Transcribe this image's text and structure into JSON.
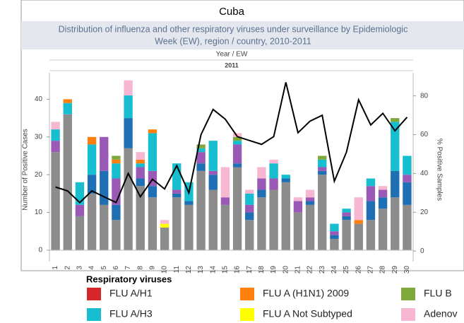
{
  "chart_data": {
    "type": "bar",
    "stacked": true,
    "country": "Cuba",
    "title": "Distribution of influenza and other respiratory viruses under surveillance by Epidemiologic",
    "subtitle": "Week (EW), region / country, 2010-2011",
    "x_header": "Year  /  EW",
    "year": "2011",
    "ylabel": "Number of Positive Cases",
    "y2label": "% Positive Samples",
    "legend_title": "Respiratory viruses",
    "categories": [
      "1",
      "2",
      "3",
      "4",
      "5",
      "6",
      "7",
      "8",
      "9",
      "10",
      "11",
      "12",
      "13",
      "14",
      "15",
      "16",
      "17",
      "18",
      "19",
      "20",
      "21",
      "22",
      "23",
      "24",
      "25",
      "26",
      "27",
      "28",
      "29",
      "30"
    ],
    "ylim": [
      -3,
      47
    ],
    "yticks": [
      0,
      10,
      20,
      30,
      40
    ],
    "y2lim": [
      -5.4,
      91.9
    ],
    "y2ticks": [
      0,
      20,
      40,
      60,
      80
    ],
    "series": [
      {
        "color": "#8c8c8c",
        "values": [
          26,
          36,
          9,
          15,
          12,
          8,
          27,
          17,
          14,
          6,
          14,
          12,
          21,
          16,
          12,
          22,
          8,
          14,
          16,
          18,
          10,
          12,
          20,
          3,
          8,
          7,
          8,
          11,
          14,
          12
        ]
      },
      {
        "color": "#1f6fb4",
        "values": [
          0,
          0,
          0,
          5,
          9,
          4,
          8,
          2,
          3,
          0,
          1,
          1,
          2,
          4,
          0,
          1,
          2,
          2,
          0,
          1,
          0,
          1,
          1,
          1,
          1,
          0,
          5,
          3,
          7,
          6
        ]
      },
      {
        "color": "#9b59b6",
        "values": [
          3,
          0,
          3,
          0,
          9,
          7,
          0,
          3,
          4,
          0,
          1,
          0,
          3,
          1,
          2,
          5,
          2,
          3,
          3,
          0,
          3,
          1,
          1,
          1,
          1,
          0,
          4,
          2,
          0,
          2
        ]
      },
      {
        "name": "FLU A/H1",
        "color": "#d62728",
        "values": [
          0,
          0,
          0,
          0,
          0,
          0,
          0,
          0,
          0,
          0,
          0,
          0,
          0,
          0,
          0,
          0,
          0,
          0,
          0,
          0,
          0,
          0,
          0,
          0,
          0,
          0,
          0,
          0,
          0,
          0
        ]
      },
      {
        "name": "FLU A/H3",
        "color": "#17becf",
        "values": [
          3,
          3,
          6,
          8,
          0,
          4,
          6,
          1,
          10,
          0,
          7,
          5,
          1,
          8,
          0,
          1,
          3,
          0,
          4,
          1,
          0,
          0,
          2,
          2,
          1,
          0,
          2,
          0,
          13,
          5
        ]
      },
      {
        "name": "FLU A (H1N1) 2009",
        "color": "#ff7f0e",
        "values": [
          0,
          1,
          0,
          2,
          0,
          1,
          0,
          1,
          1,
          0,
          0,
          0,
          0,
          0,
          0,
          0,
          0,
          0,
          0,
          0,
          0,
          0,
          0,
          0,
          0,
          1,
          0,
          0,
          0,
          0
        ]
      },
      {
        "name": "FLU A Not Subtyped",
        "color": "#ffff00",
        "values": [
          0,
          0,
          0,
          0,
          0,
          0,
          0,
          0,
          0,
          1,
          0,
          0,
          0,
          0,
          0,
          0,
          0,
          0,
          0,
          0,
          0,
          0,
          0,
          0,
          0,
          0,
          0,
          0,
          0,
          0
        ]
      },
      {
        "name": "FLU B",
        "color": "#7fa83a",
        "values": [
          0,
          0,
          0,
          0,
          0,
          1,
          0,
          0,
          0,
          0,
          0,
          0,
          1,
          0,
          0,
          1,
          0,
          0,
          0,
          0,
          0,
          0,
          1,
          0,
          0,
          0,
          0,
          0,
          1,
          0
        ]
      },
      {
        "name": "Adenov",
        "color": "#f7b6d2",
        "values": [
          2,
          0,
          0,
          0,
          0,
          0,
          4,
          2,
          0,
          1,
          0,
          0,
          0,
          0,
          8,
          1,
          1,
          3,
          1,
          0,
          1,
          2,
          0,
          0,
          0,
          6,
          0,
          1,
          0,
          0
        ]
      },
      {
        "type": "line",
        "axis": "y2",
        "color": "#000000",
        "values": [
          33,
          31,
          25,
          31,
          28,
          25,
          40,
          28,
          37,
          32,
          44,
          30,
          60,
          73,
          68,
          59,
          57,
          55,
          59,
          87,
          61,
          67,
          70,
          36,
          51,
          78,
          65,
          71,
          62,
          69
        ]
      }
    ]
  }
}
